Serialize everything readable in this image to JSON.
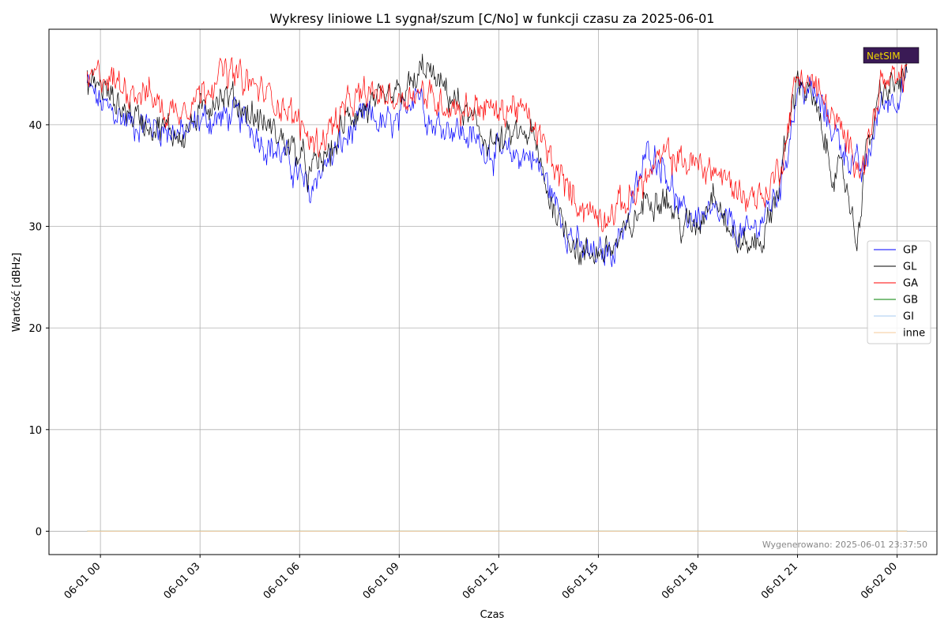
{
  "chart_data": {
    "type": "line",
    "title": "Wykresy liniowe L1 sygnał/szum [C/No] w funkcji czasu za 2025-06-01",
    "xlabel": "Czas",
    "ylabel": "Wartość [dBHz]",
    "ylim": [
      -2.3,
      49.4
    ],
    "xlim_hours": [
      -1.55,
      25.2
    ],
    "x_tick_hours": [
      0,
      3,
      6,
      9,
      12,
      15,
      18,
      21,
      24
    ],
    "x_tick_labels": [
      "06-01 00",
      "06-01 03",
      "06-01 06",
      "06-01 09",
      "06-01 12",
      "06-01 15",
      "06-01 18",
      "06-01 21",
      "06-02 00"
    ],
    "y_ticks": [
      0,
      10,
      20,
      30,
      40
    ],
    "y_tick_labels": [
      "0",
      "10",
      "20",
      "30",
      "40"
    ],
    "grid": true,
    "legend_position": "center-right",
    "series": [
      {
        "name": "GP",
        "color": "#0000ff",
        "x_hours": [
          -0.4,
          0.0,
          0.5,
          1.0,
          1.5,
          2.0,
          2.5,
          3.0,
          3.5,
          4.0,
          4.5,
          5.0,
          5.5,
          6.0,
          6.3,
          6.5,
          7.0,
          7.5,
          8.0,
          8.5,
          9.0,
          9.5,
          10.0,
          10.5,
          11.0,
          11.5,
          12.0,
          12.5,
          13.0,
          13.5,
          14.0,
          14.5,
          15.0,
          15.5,
          16.0,
          16.5,
          17.0,
          17.5,
          18.0,
          18.5,
          19.0,
          19.5,
          20.0,
          20.5,
          21.0,
          21.5,
          22.0,
          22.5,
          23.0,
          23.5,
          24.0,
          24.3
        ],
        "values": [
          44,
          42,
          41,
          40,
          40,
          39.5,
          39,
          40.5,
          40.5,
          41,
          40,
          38,
          37,
          35,
          33,
          35,
          37,
          39,
          41,
          40,
          40,
          44,
          40,
          40,
          39,
          38,
          37,
          37,
          37,
          34,
          30,
          27.5,
          27,
          28,
          32,
          37.5,
          36,
          31,
          31,
          31,
          30,
          29,
          31,
          34,
          43.5,
          43,
          40,
          37,
          35,
          42,
          43,
          44.5
        ]
      },
      {
        "name": "GL",
        "color": "#000000",
        "x_hours": [
          -0.4,
          0.0,
          0.5,
          1.0,
          1.5,
          2.0,
          2.5,
          3.0,
          3.5,
          4.0,
          4.5,
          5.0,
          5.5,
          6.0,
          6.3,
          6.5,
          7.0,
          7.5,
          8.0,
          8.5,
          9.0,
          9.5,
          9.8,
          10.0,
          10.5,
          11.0,
          11.5,
          12.0,
          12.5,
          13.0,
          13.5,
          14.0,
          14.5,
          15.0,
          15.5,
          16.0,
          16.5,
          17.0,
          17.5,
          18.0,
          18.5,
          19.0,
          19.5,
          20.0,
          20.5,
          21.0,
          21.5,
          22.0,
          22.5,
          22.8,
          23.0,
          23.5,
          24.0,
          24.3
        ],
        "values": [
          44,
          44,
          42,
          41,
          40,
          39.5,
          39,
          41,
          43,
          42.5,
          41,
          40,
          38.5,
          37,
          35,
          36,
          37.5,
          41,
          41.5,
          42,
          43,
          44,
          46,
          44.5,
          43,
          41,
          39,
          38,
          39,
          39,
          33,
          30,
          27,
          27.5,
          28,
          30,
          33,
          33,
          30,
          30,
          34,
          29,
          28,
          29,
          35,
          45,
          42,
          36,
          34,
          28,
          36,
          43,
          44,
          45
        ]
      },
      {
        "name": "GA",
        "color": "#ff0000",
        "x_hours": [
          -0.4,
          0.0,
          0.5,
          1.0,
          1.5,
          2.0,
          2.5,
          3.0,
          3.5,
          4.0,
          4.5,
          5.0,
          5.5,
          6.0,
          6.5,
          7.0,
          7.5,
          8.0,
          8.5,
          9.0,
          9.5,
          10.0,
          10.5,
          11.0,
          11.5,
          12.0,
          12.5,
          13.0,
          13.5,
          14.0,
          14.5,
          15.0,
          15.5,
          16.0,
          16.5,
          17.0,
          17.5,
          18.0,
          18.5,
          19.0,
          19.5,
          20.0,
          20.5,
          21.0,
          21.5,
          22.0,
          22.5,
          23.0,
          23.5,
          24.0,
          24.3
        ],
        "values": [
          44,
          45,
          44,
          43.5,
          43,
          41,
          42,
          43,
          45,
          45,
          44,
          43,
          42,
          40,
          38,
          40,
          42,
          43,
          43,
          42.5,
          43.5,
          42.5,
          42,
          41.5,
          42,
          41,
          42,
          40,
          37,
          34,
          32,
          31,
          31.5,
          33,
          35,
          37,
          36.5,
          36,
          35.5,
          34,
          33,
          33,
          36,
          45,
          44,
          41,
          38,
          36,
          44,
          44,
          45.5
        ]
      },
      {
        "name": "GB",
        "color": "#008000",
        "x_hours": [
          -0.4,
          24.3
        ],
        "values": [
          0,
          0
        ]
      },
      {
        "name": "GI",
        "color": "#a6c8f0",
        "x_hours": [
          -0.4,
          24.3
        ],
        "values": [
          0,
          0
        ]
      },
      {
        "name": "inne",
        "color": "#f5c89a",
        "x_hours": [
          -0.4,
          24.3
        ],
        "values": [
          0,
          0
        ]
      }
    ],
    "footer": "Wygenerowano: 2025-06-01 23:37:50",
    "logo_text": "NetSIM"
  }
}
